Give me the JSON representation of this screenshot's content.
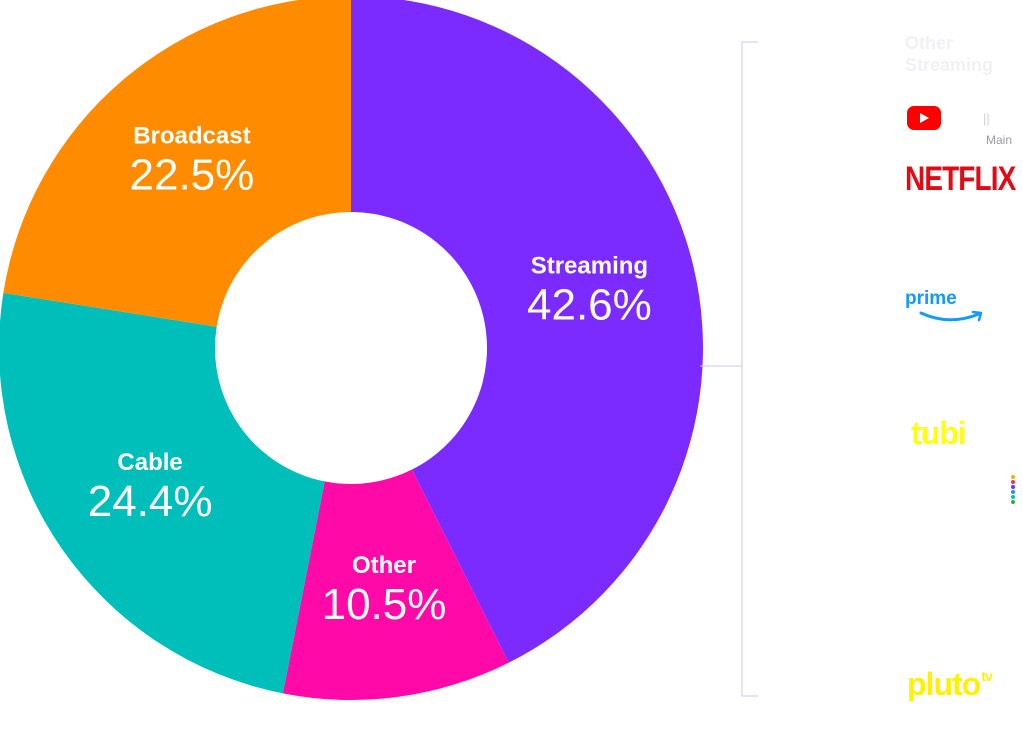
{
  "chart_data": {
    "type": "pie",
    "donut": true,
    "slices": [
      {
        "label": "Streaming",
        "value": 42.6,
        "value_label": "42.6%",
        "color": "#7b2bff"
      },
      {
        "label": "Other",
        "value": 10.5,
        "value_label": "10.5%",
        "color": "#ff0aa8"
      },
      {
        "label": "Cable",
        "value": 24.4,
        "value_label": "24.4%",
        "color": "#00bfba"
      },
      {
        "label": "Broadcast",
        "value": 22.5,
        "value_label": "22.5%",
        "color": "#ff8c00"
      }
    ],
    "start_angle_deg": 0,
    "direction": "clockwise"
  },
  "sidebar": {
    "title": "Other Streaming",
    "youtube_bars": "||",
    "youtube_sub": "Main",
    "netflix": "NETFLIX",
    "prime": "prime",
    "tubi": "tubi",
    "pluto": "pluto",
    "pluto_sup": "tv",
    "bracket_color": "#c9c9f0",
    "roku_colors": [
      "#f4b400",
      "#e8336b",
      "#7b2bff",
      "#1399ff",
      "#00bfba",
      "#34a853"
    ]
  }
}
